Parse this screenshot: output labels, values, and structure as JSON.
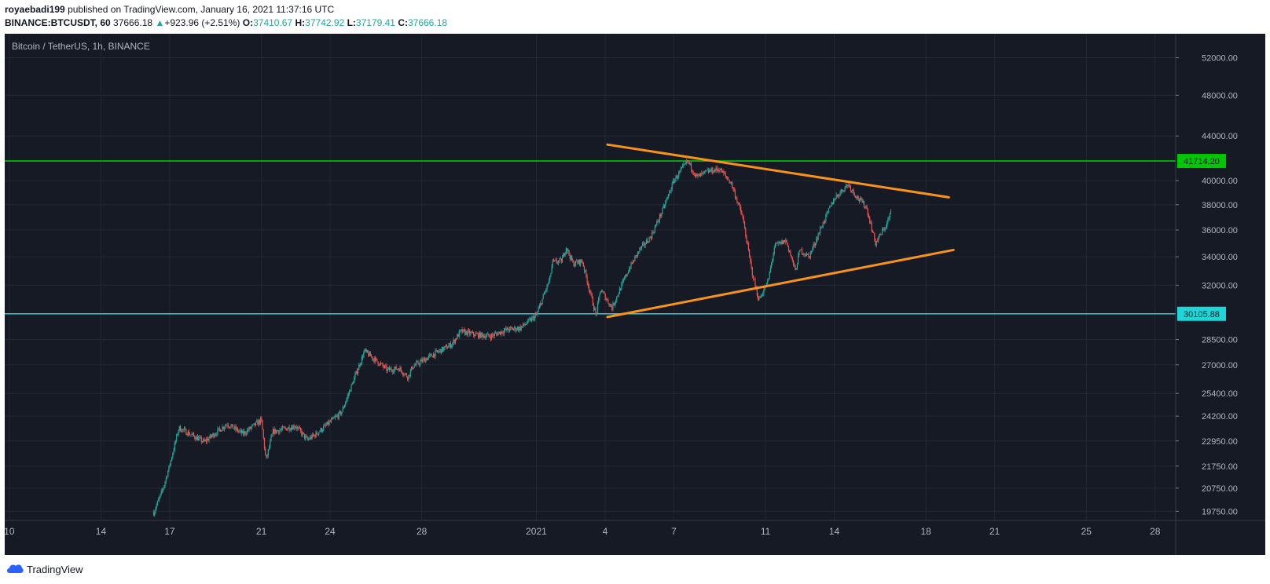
{
  "header": {
    "author": "royaebadi199",
    "published": "published on TradingView.com, January 16, 2021 11:37:16 UTC",
    "symbol": "BINANCE:BTCUSDT, 60",
    "last": "37666.18",
    "arrow": "▲",
    "change": "+923.96 (+2.51%)",
    "o_label": "O:",
    "o_value": "37410.67",
    "h_label": "H:",
    "h_value": "37742.92",
    "l_label": "L:",
    "l_value": "37179.41",
    "c_label": "C:",
    "c_value": "37666.18"
  },
  "footer": {
    "brand": "TradingView",
    "logo_icon": "tradingview-cloud-icon"
  },
  "colors": {
    "background": "#161a25",
    "grid": "#232733",
    "up": "#26a69a",
    "down": "#ef5350",
    "trendline": "#f7931a",
    "resistance": "#00c800",
    "support": "#1ed6d6"
  },
  "chart_data": {
    "type": "candlestick",
    "title": "Bitcoin / TetherUS, 1h, BINANCE",
    "y_ticks": [
      "52000.00",
      "48000.00",
      "44000.00",
      "40000.00",
      "38000.00",
      "36000.00",
      "34000.00",
      "32000.00",
      "28500.00",
      "27000.00",
      "25400.00",
      "24200.00",
      "22950.00",
      "21750.00",
      "20750.00",
      "19750.00"
    ],
    "y_scale": "log",
    "ylim": [
      19500,
      54000
    ],
    "x_ticks": [
      "10",
      "14",
      "17",
      "21",
      "24",
      "28",
      "2021",
      "4",
      "7",
      "11",
      "14",
      "18",
      "21",
      "25",
      "28"
    ],
    "x_tick_days": [
      -22,
      -18,
      -15,
      -11,
      -8,
      -4,
      1,
      4,
      7,
      11,
      14,
      18,
      21,
      25,
      28
    ],
    "xlim": [
      -22.2,
      28.9
    ],
    "horizontal_levels": [
      {
        "value": 41714.2,
        "label": "41714.20",
        "color": "#00c800"
      },
      {
        "value": 30105.88,
        "label": "30105.88",
        "color": "#1ed6d6"
      }
    ],
    "trendlines": [
      {
        "name": "upper",
        "from": {
          "day": 4.1,
          "price": 43200
        },
        "to": {
          "day": 19.0,
          "price": 38600
        }
      },
      {
        "name": "lower",
        "from": {
          "day": 4.1,
          "price": 29900
        },
        "to": {
          "day": 19.2,
          "price": 34500
        }
      }
    ],
    "price_path_days": [
      -15.7,
      -15.3,
      -15.0,
      -14.6,
      -13.5,
      -12.5,
      -11.8,
      -11.0,
      -10.8,
      -10.5,
      -9.5,
      -9.0,
      -8.6,
      -7.5,
      -6.5,
      -5.5,
      -5.0,
      -4.6,
      -4.4,
      -3.5,
      -2.7,
      -2.3,
      -1.7,
      -1.0,
      -0.3,
      0.3,
      1.0,
      1.6,
      1.7,
      2.1,
      2.3,
      2.6,
      3.0,
      3.6,
      3.8,
      4.3,
      5.0,
      5.5,
      6.0,
      6.5,
      7.0,
      7.6,
      8.0,
      8.5,
      9.0,
      9.5,
      10.0,
      10.4,
      10.7,
      11.1,
      11.4,
      11.9,
      12.3,
      12.5,
      12.9,
      13.5,
      14.0,
      14.6,
      15.0,
      15.4,
      15.8,
      16.3,
      16.5
    ],
    "price_path_prices": [
      19700,
      20700,
      21800,
      23600,
      22900,
      23800,
      23300,
      24000,
      22000,
      23400,
      23700,
      23000,
      23300,
      24400,
      27800,
      26700,
      26800,
      26300,
      26900,
      27600,
      28200,
      29000,
      28800,
      28700,
      29100,
      29200,
      30000,
      32500,
      33600,
      33700,
      34700,
      33500,
      33700,
      30000,
      31700,
      30500,
      33000,
      34500,
      35500,
      37500,
      40000,
      41700,
      40300,
      40800,
      41000,
      39800,
      37000,
      33000,
      31000,
      32200,
      34800,
      35200,
      33000,
      34500,
      34000,
      36500,
      38500,
      39700,
      38600,
      37800,
      35000,
      36500,
      37600
    ]
  }
}
